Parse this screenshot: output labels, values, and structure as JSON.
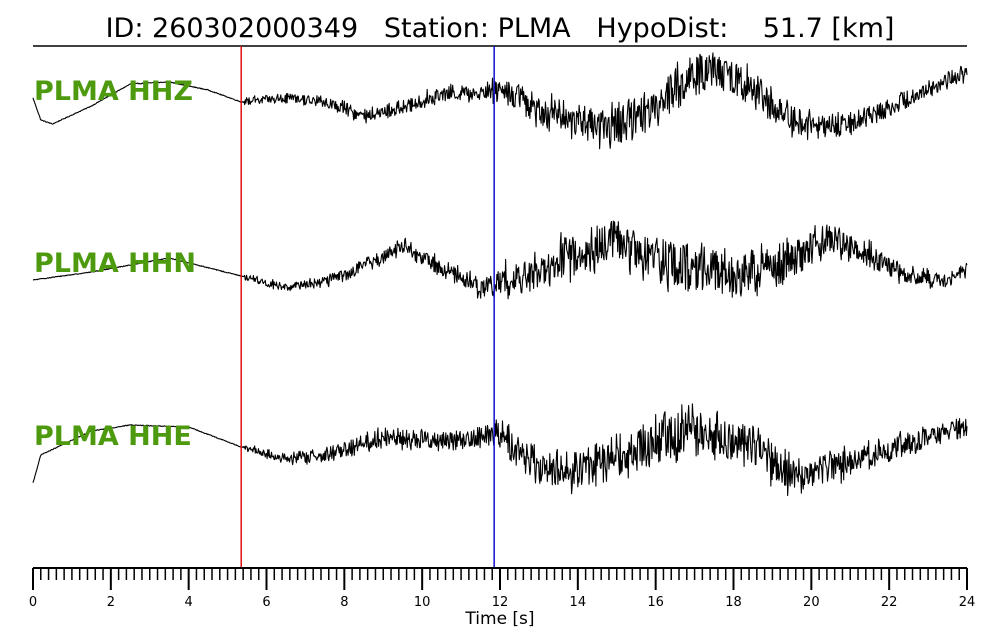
{
  "header": {
    "title": "ID: 260302000349   Station: PLMA   HypoDist:    51.7 [km]"
  },
  "colors": {
    "trace": "#000000",
    "channel_label": "#4d9a0f",
    "p_pick": "#e01010",
    "s_pick": "#1010d0",
    "axis": "#000000"
  },
  "chart_data": {
    "type": "line",
    "title": "ID: 260302000349   Station: PLMA   HypoDist:    51.7 [km]",
    "xlabel": "Time [s]",
    "ylabel": "",
    "xlim": [
      0,
      24
    ],
    "x_ticks": [
      "0",
      "2",
      "4",
      "6",
      "8",
      "10",
      "12",
      "14",
      "16",
      "18",
      "20",
      "22",
      "24"
    ],
    "minor_tick_step": 0.2,
    "markers": [
      {
        "name": "P pick",
        "x": 5.35,
        "color": "#e01010"
      },
      {
        "name": "S pick",
        "x": 11.85,
        "color": "#1010d0"
      }
    ],
    "series": [
      {
        "name": "PLMA HHZ",
        "onset": 5.35,
        "noise_amp": [
          [
            0,
            0.0
          ],
          [
            5.35,
            0.0
          ],
          [
            5.5,
            0.12
          ],
          [
            8,
            0.2
          ],
          [
            11.5,
            0.25
          ],
          [
            12,
            0.45
          ],
          [
            14,
            0.55
          ],
          [
            16,
            0.7
          ],
          [
            18,
            0.65
          ],
          [
            20,
            0.45
          ],
          [
            22,
            0.3
          ],
          [
            24,
            0.25
          ]
        ],
        "envelope": [
          [
            0,
            0.55
          ],
          [
            0.2,
            0.0
          ],
          [
            0.5,
            -0.1
          ],
          [
            1.5,
            0.35
          ],
          [
            2.5,
            0.9
          ],
          [
            3.5,
            0.95
          ],
          [
            4.5,
            0.75
          ],
          [
            5.35,
            0.45
          ],
          [
            6.5,
            0.55
          ],
          [
            7.5,
            0.45
          ],
          [
            8.5,
            0.1
          ],
          [
            9.5,
            0.3
          ],
          [
            10.5,
            0.65
          ],
          [
            11.5,
            0.7
          ],
          [
            12,
            0.8
          ],
          [
            13,
            0.3
          ],
          [
            14.5,
            -0.2
          ],
          [
            15.5,
            0.05
          ],
          [
            16.5,
            0.8
          ],
          [
            17.5,
            1.3
          ],
          [
            18.5,
            0.8
          ],
          [
            19.5,
            0.0
          ],
          [
            20.5,
            -0.2
          ],
          [
            21.5,
            0.1
          ],
          [
            22.5,
            0.55
          ],
          [
            24,
            1.2
          ]
        ]
      },
      {
        "name": "PLMA HHN",
        "onset": 5.35,
        "noise_amp": [
          [
            0,
            0.0
          ],
          [
            5.35,
            0.0
          ],
          [
            5.5,
            0.1
          ],
          [
            8,
            0.2
          ],
          [
            11.5,
            0.3
          ],
          [
            12,
            0.5
          ],
          [
            14,
            0.7
          ],
          [
            16,
            0.75
          ],
          [
            18,
            0.7
          ],
          [
            20,
            0.55
          ],
          [
            22,
            0.35
          ],
          [
            24,
            0.2
          ]
        ],
        "envelope": [
          [
            0,
            0.0
          ],
          [
            1.5,
            0.2
          ],
          [
            3.5,
            0.55
          ],
          [
            5.35,
            0.1
          ],
          [
            6.5,
            -0.2
          ],
          [
            8,
            0.1
          ],
          [
            9.5,
            0.85
          ],
          [
            10.5,
            0.3
          ],
          [
            11.5,
            -0.2
          ],
          [
            12,
            -0.05
          ],
          [
            13,
            0.2
          ],
          [
            14,
            0.7
          ],
          [
            15,
            1.0
          ],
          [
            16,
            0.5
          ],
          [
            17,
            0.3
          ],
          [
            18,
            0.15
          ],
          [
            19.5,
            0.5
          ],
          [
            20.5,
            1.1
          ],
          [
            21.5,
            0.6
          ],
          [
            22.5,
            0.1
          ],
          [
            23.5,
            0.0
          ],
          [
            24,
            0.25
          ]
        ]
      },
      {
        "name": "PLMA HHE",
        "onset": 5.35,
        "noise_amp": [
          [
            0,
            0.0
          ],
          [
            5.35,
            0.0
          ],
          [
            5.5,
            0.1
          ],
          [
            8,
            0.25
          ],
          [
            11.5,
            0.3
          ],
          [
            12,
            0.5
          ],
          [
            14,
            0.65
          ],
          [
            16,
            0.8
          ],
          [
            18,
            0.7
          ],
          [
            20,
            0.55
          ],
          [
            22,
            0.35
          ],
          [
            24,
            0.3
          ]
        ],
        "envelope": [
          [
            0,
            -0.7
          ],
          [
            0.2,
            0.0
          ],
          [
            1.5,
            0.6
          ],
          [
            2.5,
            0.75
          ],
          [
            4,
            0.7
          ],
          [
            5.35,
            0.2
          ],
          [
            6.5,
            -0.1
          ],
          [
            7.5,
            0.0
          ],
          [
            9,
            0.45
          ],
          [
            10.5,
            0.35
          ],
          [
            12,
            0.55
          ],
          [
            13,
            -0.3
          ],
          [
            14,
            -0.4
          ],
          [
            15.5,
            0.2
          ],
          [
            17,
            0.6
          ],
          [
            18.5,
            0.2
          ],
          [
            19.5,
            -0.5
          ],
          [
            21,
            -0.2
          ],
          [
            22.5,
            0.3
          ],
          [
            24,
            0.7
          ]
        ]
      }
    ]
  }
}
